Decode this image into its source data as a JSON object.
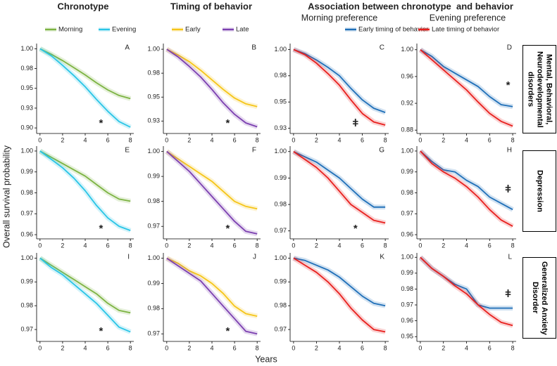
{
  "column_titles": [
    "Chronotype",
    "Timing of behavior",
    "Association between chronotype  and behavior"
  ],
  "subtitles": [
    "Morning preference",
    "Evening preference"
  ],
  "row_labels": [
    "Mental, Behavioral, Neurodevelopmental disorders",
    "Depression",
    "Generalized Anxiety Disorder"
  ],
  "ylabel": "Overall survival probability",
  "xlabel": "Years",
  "chart_data": [
    {
      "type": "line",
      "panel": "A",
      "annotation": "*",
      "xlim": [
        -0.3,
        8.3
      ],
      "xticks": [
        0,
        2,
        4,
        6,
        8
      ],
      "ylim": [
        0.893,
        1.003
      ],
      "yticks": [
        {
          "value": 1,
          "label": "1.00"
        },
        {
          "value": 0.975,
          "label": "0.98"
        },
        0.95,
        {
          "value": 0.925,
          "label": "0.93"
        },
        {
          "value": 0.9,
          "label": "0.90"
        }
      ],
      "x": [
        0,
        1,
        2,
        3,
        4,
        5,
        6,
        7,
        8
      ],
      "series": [
        {
          "name": "Morning",
          "color": "#7cb342",
          "values": [
            1,
            0.993,
            0.985,
            0.976,
            0.967,
            0.957,
            0.948,
            0.941,
            0.937
          ]
        },
        {
          "name": "Evening",
          "color": "#29c5e6",
          "values": [
            1,
            0.991,
            0.979,
            0.966,
            0.952,
            0.936,
            0.921,
            0.908,
            0.901
          ]
        }
      ]
    },
    {
      "type": "line",
      "panel": "B",
      "annotation": "*",
      "xlim": [
        -0.3,
        8.3
      ],
      "xticks": [
        0,
        2,
        4,
        6,
        8
      ],
      "ylim": [
        0.912,
        1.003
      ],
      "yticks": [
        {
          "value": 1,
          "label": "1.00"
        },
        {
          "value": 0.975,
          "label": "0.98"
        },
        0.95,
        {
          "value": 0.925,
          "label": "0.93"
        }
      ],
      "x": [
        0,
        1,
        2,
        3,
        4,
        5,
        6,
        7,
        8
      ],
      "series": [
        {
          "name": "Early",
          "color": "#f5c518",
          "values": [
            1,
            0.994,
            0.987,
            0.978,
            0.968,
            0.958,
            0.949,
            0.943,
            0.94
          ]
        },
        {
          "name": "Late",
          "color": "#7b3fb0",
          "values": [
            1,
            0.992,
            0.982,
            0.971,
            0.958,
            0.944,
            0.932,
            0.923,
            0.919
          ]
        }
      ]
    },
    {
      "type": "line",
      "panel": "C",
      "annotation": "ǂ",
      "xlim": [
        -0.3,
        8.3
      ],
      "xticks": [
        0,
        2,
        4,
        6,
        8
      ],
      "ylim": [
        0.92,
        1.003
      ],
      "yticks": [
        {
          "value": 1,
          "label": "1.00"
        },
        {
          "value": 0.975,
          "label": "0.98"
        },
        0.95,
        {
          "value": 0.925,
          "label": "0.93"
        }
      ],
      "x": [
        0,
        1,
        2,
        3,
        4,
        5,
        6,
        7,
        8
      ],
      "series": [
        {
          "name": "Early timing of behavior",
          "color": "#1f6fb8",
          "values": [
            1,
            0.996,
            0.99,
            0.983,
            0.975,
            0.963,
            0.952,
            0.944,
            0.94
          ]
        },
        {
          "name": "Late timing of behavior",
          "color": "#e8201e",
          "values": [
            1,
            0.995,
            0.987,
            0.977,
            0.966,
            0.952,
            0.939,
            0.931,
            0.928
          ]
        }
      ]
    },
    {
      "type": "line",
      "panel": "D",
      "annotation": "*",
      "xlim": [
        -0.3,
        8.3
      ],
      "xticks": [
        0,
        2,
        4,
        6,
        8
      ],
      "ylim": [
        0.875,
        1.005
      ],
      "yticks": [
        {
          "value": 1,
          "label": "1.00"
        },
        0.96,
        0.92,
        0.88
      ],
      "x": [
        0,
        1,
        2,
        3,
        4,
        5,
        6,
        7,
        8
      ],
      "series": [
        {
          "name": "Early timing of behavior",
          "color": "#1f6fb8",
          "values": [
            1,
            0.99,
            0.975,
            0.965,
            0.955,
            0.945,
            0.93,
            0.918,
            0.915
          ]
        },
        {
          "name": "Late timing of behavior",
          "color": "#e8201e",
          "values": [
            1,
            0.985,
            0.97,
            0.955,
            0.94,
            0.922,
            0.905,
            0.893,
            0.886
          ]
        }
      ]
    },
    {
      "type": "line",
      "panel": "E",
      "annotation": "*",
      "xlim": [
        -0.3,
        8.3
      ],
      "xticks": [
        0,
        2,
        4,
        6,
        8
      ],
      "ylim": [
        0.958,
        1.001
      ],
      "yticks": [
        {
          "value": 1,
          "label": "1.00"
        },
        0.99,
        0.98,
        0.97,
        0.96
      ],
      "x": [
        0,
        1,
        2,
        3,
        4,
        5,
        6,
        7,
        8
      ],
      "series": [
        {
          "name": "Morning",
          "color": "#7cb342",
          "values": [
            1,
            0.997,
            0.994,
            0.991,
            0.988,
            0.984,
            0.98,
            0.977,
            0.976
          ]
        },
        {
          "name": "Evening",
          "color": "#29c5e6",
          "values": [
            1,
            0.996,
            0.992,
            0.987,
            0.981,
            0.974,
            0.968,
            0.964,
            0.962
          ]
        }
      ]
    },
    {
      "type": "line",
      "panel": "F",
      "annotation": "*",
      "xlim": [
        -0.3,
        8.3
      ],
      "xticks": [
        0,
        2,
        4,
        6,
        8
      ],
      "ylim": [
        0.965,
        1.001
      ],
      "yticks": [
        {
          "value": 1,
          "label": "1.00"
        },
        0.99,
        0.98,
        0.97
      ],
      "x": [
        0,
        1,
        2,
        3,
        4,
        5,
        6,
        7,
        8
      ],
      "series": [
        {
          "name": "Early",
          "color": "#f5c518",
          "values": [
            1,
            0.997,
            0.994,
            0.991,
            0.988,
            0.984,
            0.98,
            0.978,
            0.977
          ]
        },
        {
          "name": "Late",
          "color": "#7b3fb0",
          "values": [
            1,
            0.996,
            0.992,
            0.987,
            0.982,
            0.977,
            0.972,
            0.968,
            0.967
          ]
        }
      ]
    },
    {
      "type": "line",
      "panel": "G",
      "annotation": "*",
      "xlim": [
        -0.3,
        8.3
      ],
      "xticks": [
        0,
        2,
        4,
        6,
        8
      ],
      "ylim": [
        0.967,
        1.001
      ],
      "yticks": [
        {
          "value": 1,
          "label": "1.00"
        },
        0.99,
        0.98,
        0.97
      ],
      "x": [
        0,
        1,
        2,
        3,
        4,
        5,
        6,
        7,
        8
      ],
      "series": [
        {
          "name": "Early timing of behavior",
          "color": "#1f6fb8",
          "values": [
            1,
            0.998,
            0.996,
            0.993,
            0.99,
            0.986,
            0.982,
            0.979,
            0.979
          ]
        },
        {
          "name": "Late timing of behavior",
          "color": "#e8201e",
          "values": [
            1,
            0.997,
            0.994,
            0.99,
            0.985,
            0.98,
            0.977,
            0.974,
            0.973
          ]
        }
      ]
    },
    {
      "type": "line",
      "panel": "H",
      "annotation": "ǂ",
      "xlim": [
        -0.3,
        8.3
      ],
      "xticks": [
        0,
        2,
        4,
        6,
        8
      ],
      "ylim": [
        0.958,
        1.001
      ],
      "yticks": [
        {
          "value": 1,
          "label": "1.00"
        },
        0.99,
        0.98,
        0.97,
        0.96
      ],
      "x": [
        0,
        1,
        2,
        3,
        4,
        5,
        6,
        7,
        8
      ],
      "series": [
        {
          "name": "Early timing of behavior",
          "color": "#1f6fb8",
          "values": [
            1,
            0.995,
            0.991,
            0.99,
            0.986,
            0.983,
            0.978,
            0.975,
            0.972
          ]
        },
        {
          "name": "Late timing of behavior",
          "color": "#e8201e",
          "values": [
            1,
            0.994,
            0.99,
            0.987,
            0.983,
            0.978,
            0.972,
            0.967,
            0.964
          ]
        }
      ]
    },
    {
      "type": "line",
      "panel": "I",
      "annotation": "*",
      "xlim": [
        -0.3,
        8.3
      ],
      "xticks": [
        0,
        2,
        4,
        6,
        8
      ],
      "ylim": [
        0.965,
        1.001
      ],
      "yticks": [
        {
          "value": 1,
          "label": "1.00"
        },
        0.99,
        0.98,
        0.97
      ],
      "x": [
        0,
        1,
        2,
        3,
        4,
        5,
        6,
        7,
        8
      ],
      "series": [
        {
          "name": "Morning",
          "color": "#7cb342",
          "values": [
            1,
            0.997,
            0.994,
            0.991,
            0.988,
            0.985,
            0.981,
            0.978,
            0.977
          ]
        },
        {
          "name": "Evening",
          "color": "#29c5e6",
          "values": [
            1,
            0.996,
            0.993,
            0.989,
            0.985,
            0.981,
            0.976,
            0.971,
            0.969
          ]
        }
      ]
    },
    {
      "type": "line",
      "panel": "J",
      "annotation": "*",
      "xlim": [
        -0.3,
        8.3
      ],
      "xticks": [
        0,
        2,
        4,
        6,
        8
      ],
      "ylim": [
        0.967,
        1.001
      ],
      "yticks": [
        {
          "value": 1,
          "label": "1.00"
        },
        0.99,
        0.98,
        0.97
      ],
      "x": [
        0,
        1,
        2,
        3,
        4,
        5,
        6,
        7,
        8
      ],
      "series": [
        {
          "name": "Early",
          "color": "#f5c518",
          "values": [
            1,
            0.998,
            0.995,
            0.993,
            0.99,
            0.986,
            0.981,
            0.978,
            0.977
          ]
        },
        {
          "name": "Late",
          "color": "#7b3fb0",
          "values": [
            1,
            0.997,
            0.994,
            0.991,
            0.986,
            0.981,
            0.976,
            0.971,
            0.97
          ]
        }
      ]
    },
    {
      "type": "line",
      "panel": "K",
      "xlim": [
        -0.3,
        8.3
      ],
      "xticks": [
        0,
        2,
        4,
        6,
        8
      ],
      "ylim": [
        0.965,
        1.001
      ],
      "yticks": [
        {
          "value": 1,
          "label": "1.00"
        },
        0.99,
        0.98,
        0.97
      ],
      "x": [
        0,
        1,
        2,
        3,
        4,
        5,
        6,
        7,
        8
      ],
      "series": [
        {
          "name": "Early timing of behavior",
          "color": "#1f6fb8",
          "values": [
            1,
            0.999,
            0.997,
            0.995,
            0.992,
            0.988,
            0.984,
            0.981,
            0.98
          ]
        },
        {
          "name": "Late timing of behavior",
          "color": "#e8201e",
          "values": [
            1,
            0.997,
            0.994,
            0.99,
            0.985,
            0.979,
            0.974,
            0.97,
            0.969
          ]
        }
      ]
    },
    {
      "type": "line",
      "panel": "L",
      "annotation": "ǂ",
      "xlim": [
        -0.3,
        8.3
      ],
      "xticks": [
        0,
        2,
        4,
        6,
        8
      ],
      "ylim": [
        0.947,
        1.001
      ],
      "yticks": [
        {
          "value": 1,
          "label": "1.00"
        },
        0.99,
        0.98,
        0.97,
        0.96,
        0.95
      ],
      "x": [
        0,
        1,
        2,
        3,
        4,
        5,
        6,
        7,
        8
      ],
      "series": [
        {
          "name": "Early timing of behavior",
          "color": "#1f6fb8",
          "values": [
            1,
            0.993,
            0.988,
            0.983,
            0.98,
            0.97,
            0.968,
            0.968,
            0.968
          ]
        },
        {
          "name": "Late timing of behavior",
          "color": "#e8201e",
          "values": [
            1,
            0.993,
            0.988,
            0.982,
            0.977,
            0.97,
            0.964,
            0.959,
            0.957
          ]
        }
      ]
    }
  ]
}
